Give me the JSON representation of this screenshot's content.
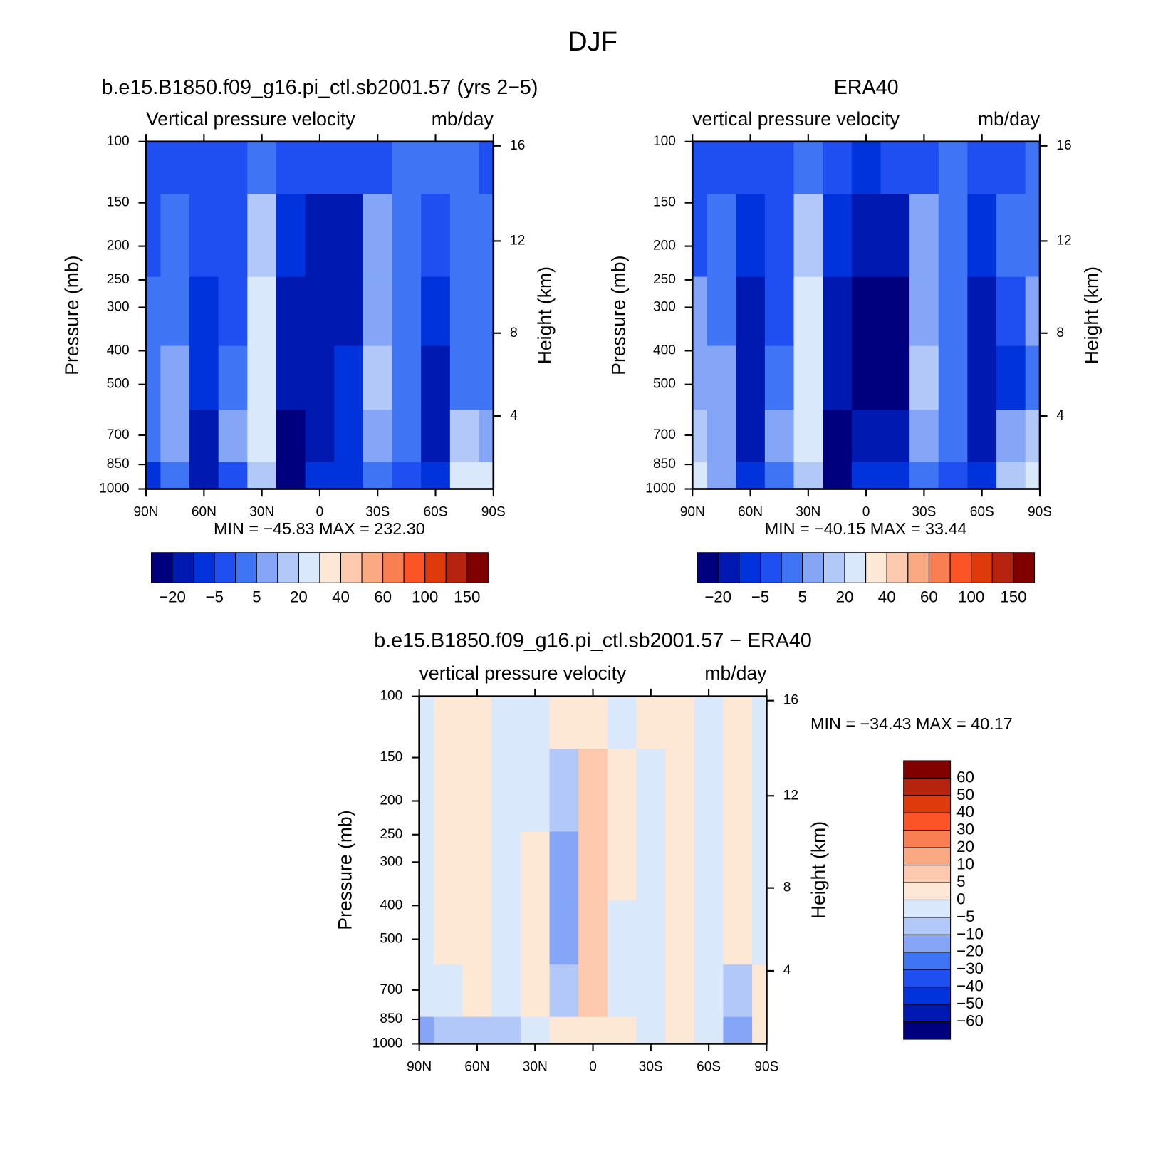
{
  "title": "DJF",
  "chart_data": [
    {
      "type": "contour",
      "title": "b.e15.B1850.f09_g16.pi_ctl.sb2001.57 (yrs 2−5)",
      "subtitle": "Vertical pressure velocity",
      "units": "mb/day",
      "ylabel": "Pressure (mb)",
      "y2label": "Height (km)",
      "annotation": "MIN = −45.83   MAX = 232.30",
      "x": [
        90,
        75,
        60,
        45,
        30,
        15,
        0,
        -15,
        -30,
        -45,
        -60,
        -75,
        -90
      ],
      "y": [
        100,
        200,
        300,
        500,
        700,
        1000
      ],
      "z": [
        [
          -3,
          -3,
          -3,
          -3,
          2,
          -3,
          -3,
          -3,
          -3,
          2,
          2,
          2,
          -3
        ],
        [
          -3,
          2,
          -3,
          -3,
          15,
          -8,
          -15,
          -15,
          8,
          2,
          -3,
          2,
          2
        ],
        [
          2,
          2,
          -8,
          -3,
          22,
          -15,
          -15,
          -15,
          8,
          2,
          -8,
          2,
          2
        ],
        [
          2,
          8,
          -8,
          2,
          22,
          -15,
          -15,
          -8,
          15,
          2,
          -15,
          2,
          2
        ],
        [
          2,
          8,
          -15,
          8,
          22,
          -25,
          -15,
          -8,
          8,
          2,
          -15,
          15,
          8
        ],
        [
          -8,
          2,
          -15,
          -3,
          15,
          -25,
          -8,
          -8,
          2,
          -3,
          -8,
          22,
          30
        ]
      ],
      "xlim": [
        90,
        -90
      ],
      "ylim": [
        100,
        1000
      ],
      "log": true,
      "xticks": [
        {
          "value": 90,
          "label": "90N"
        },
        {
          "value": 60,
          "label": "60N"
        },
        {
          "value": 30,
          "label": "30N"
        },
        0,
        {
          "value": -30,
          "label": "30S"
        },
        {
          "value": -60,
          "label": "60S"
        },
        {
          "value": -90,
          "label": "90S"
        }
      ],
      "yticks": [
        100,
        150,
        200,
        250,
        300,
        400,
        500,
        700,
        850,
        1000
      ],
      "y2ticks": [
        16,
        12,
        8,
        4
      ],
      "colorbar": {
        "orientation": "horizontal",
        "levels": [
          {
            "value": -20,
            "label": "−20"
          },
          null,
          {
            "value": -5,
            "label": "−5"
          },
          null,
          5,
          null,
          20,
          null,
          40,
          null,
          60,
          null,
          100,
          null,
          150
        ],
        "colors": [
          "#00007f",
          "#0019b0",
          "#0033db",
          "#1f4ff0",
          "#3f74f5",
          "#85a6f7",
          "#b2c8f9",
          "#d9e8fb",
          "#fde7d5",
          "#fcc9af",
          "#fba983",
          "#f97f52",
          "#fb5427",
          "#de3a0c",
          "#b6230f",
          "#800000"
        ]
      }
    },
    {
      "type": "contour",
      "title": "ERA40",
      "subtitle": "vertical pressure velocity",
      "units": "mb/day",
      "ylabel": "Pressure (mb)",
      "y2label": "Height (km)",
      "annotation": "MIN = −40.15   MAX =   33.44",
      "x": [
        90,
        75,
        60,
        45,
        30,
        15,
        0,
        -15,
        -30,
        -45,
        -60,
        -75,
        -90
      ],
      "y": [
        100,
        200,
        300,
        500,
        700,
        1000
      ],
      "z": [
        [
          -3,
          -3,
          -3,
          -3,
          2,
          -3,
          -8,
          -3,
          -3,
          2,
          -3,
          -3,
          2
        ],
        [
          -3,
          2,
          -8,
          -3,
          15,
          -8,
          -15,
          -15,
          8,
          2,
          -8,
          2,
          2
        ],
        [
          8,
          2,
          -15,
          -3,
          22,
          -15,
          -25,
          -25,
          8,
          2,
          -15,
          -3,
          8
        ],
        [
          8,
          8,
          -15,
          2,
          22,
          -15,
          -25,
          -25,
          15,
          2,
          -15,
          -8,
          2
        ],
        [
          15,
          8,
          -15,
          8,
          22,
          -25,
          -15,
          -15,
          8,
          2,
          -15,
          8,
          15
        ],
        [
          22,
          8,
          -8,
          2,
          15,
          -25,
          -8,
          -8,
          2,
          -3,
          -8,
          15,
          22
        ]
      ],
      "xlim": [
        90,
        -90
      ],
      "ylim": [
        100,
        1000
      ],
      "log": true,
      "xticks": [
        {
          "value": 90,
          "label": "90N"
        },
        {
          "value": 60,
          "label": "60N"
        },
        {
          "value": 30,
          "label": "30N"
        },
        0,
        {
          "value": -30,
          "label": "30S"
        },
        {
          "value": -60,
          "label": "60S"
        },
        {
          "value": -90,
          "label": "90S"
        }
      ],
      "yticks": [
        100,
        150,
        200,
        250,
        300,
        400,
        500,
        700,
        850,
        1000
      ],
      "y2ticks": [
        16,
        12,
        8,
        4
      ],
      "colorbar": {
        "orientation": "horizontal",
        "levels": [
          {
            "value": -20,
            "label": "−20"
          },
          null,
          {
            "value": -5,
            "label": "−5"
          },
          null,
          5,
          null,
          20,
          null,
          40,
          null,
          60,
          null,
          100,
          null,
          150
        ],
        "colors": [
          "#00007f",
          "#0019b0",
          "#0033db",
          "#1f4ff0",
          "#3f74f5",
          "#85a6f7",
          "#b2c8f9",
          "#d9e8fb",
          "#fde7d5",
          "#fcc9af",
          "#fba983",
          "#f97f52",
          "#fb5427",
          "#de3a0c",
          "#b6230f",
          "#800000"
        ]
      }
    },
    {
      "type": "contour",
      "title": "b.e15.B1850.f09_g16.pi_ctl.sb2001.57 − ERA40",
      "subtitle": "vertical pressure velocity",
      "units": "mb/day",
      "ylabel": "Pressure (mb)",
      "y2label": "Height (km)",
      "annotation": "MIN = −34.43   MAX =   40.17",
      "x": [
        90,
        75,
        60,
        45,
        30,
        15,
        0,
        -15,
        -30,
        -45,
        -60,
        -75,
        -90
      ],
      "y": [
        100,
        200,
        300,
        500,
        700,
        1000
      ],
      "z": [
        [
          -2,
          2,
          2,
          -2,
          -2,
          2,
          2,
          -2,
          2,
          2,
          -2,
          2,
          -2
        ],
        [
          -2,
          2,
          2,
          -2,
          -2,
          -7,
          7,
          2,
          -2,
          2,
          -2,
          2,
          -2
        ],
        [
          -2,
          2,
          2,
          -2,
          2,
          -15,
          7,
          2,
          -2,
          2,
          -2,
          2,
          -2
        ],
        [
          -2,
          2,
          2,
          -2,
          2,
          -15,
          7,
          -2,
          -2,
          2,
          -2,
          2,
          -2
        ],
        [
          -2,
          -2,
          2,
          -2,
          2,
          -7,
          7,
          -2,
          -2,
          2,
          -2,
          -7,
          2
        ],
        [
          -15,
          -7,
          -7,
          -7,
          -2,
          2,
          2,
          2,
          -2,
          2,
          -2,
          -15,
          2
        ]
      ],
      "xlim": [
        90,
        -90
      ],
      "ylim": [
        100,
        1000
      ],
      "log": true,
      "xticks": [
        {
          "value": 90,
          "label": "90N"
        },
        {
          "value": 60,
          "label": "60N"
        },
        {
          "value": 30,
          "label": "30N"
        },
        0,
        {
          "value": -30,
          "label": "30S"
        },
        {
          "value": -60,
          "label": "60S"
        },
        {
          "value": -90,
          "label": "90S"
        }
      ],
      "yticks": [
        100,
        150,
        200,
        250,
        300,
        400,
        500,
        700,
        850,
        1000
      ],
      "y2ticks": [
        16,
        12,
        8,
        4
      ],
      "colorbar": {
        "orientation": "vertical",
        "levels": [
          60,
          50,
          40,
          30,
          20,
          10,
          5,
          0,
          {
            "value": -5,
            "label": "−5"
          },
          {
            "value": -10,
            "label": "−10"
          },
          {
            "value": -20,
            "label": "−20"
          },
          {
            "value": -30,
            "label": "−30"
          },
          {
            "value": -40,
            "label": "−40"
          },
          {
            "value": -50,
            "label": "−50"
          },
          {
            "value": -60,
            "label": "−60"
          }
        ],
        "colors": [
          "#800000",
          "#b6230f",
          "#de3a0c",
          "#fb5427",
          "#f97f52",
          "#fba983",
          "#fcc9af",
          "#fde7d5",
          "#d9e8fb",
          "#b2c8f9",
          "#85a6f7",
          "#3f74f5",
          "#1f4ff0",
          "#0033db",
          "#0019b0",
          "#00007f"
        ]
      }
    }
  ]
}
